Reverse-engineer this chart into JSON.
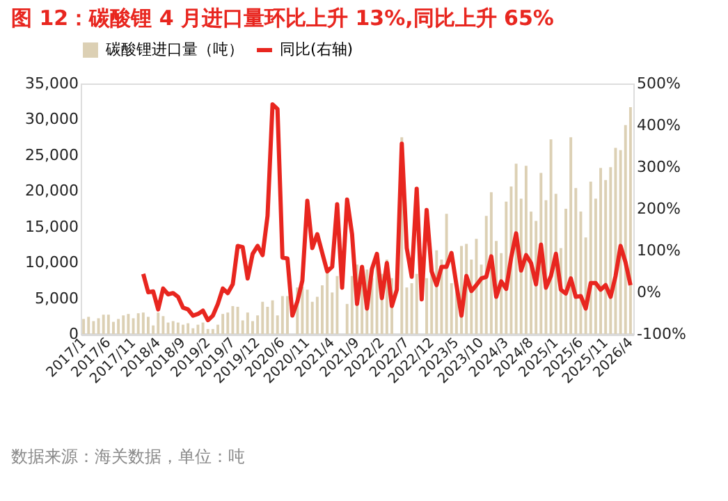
{
  "chart_data": {
    "type": "bar",
    "title": "图 12：碳酸锂 4 月进口量环比上升 13%,同比上升 65%",
    "categories": [
      "2017/1",
      null,
      null,
      null,
      null,
      "2017/6",
      null,
      null,
      null,
      null,
      "2017/11",
      null,
      null,
      null,
      null,
      "2018/4",
      null,
      null,
      null,
      null,
      "2018/9",
      null,
      null,
      null,
      null,
      "2019/2",
      null,
      null,
      null,
      null,
      "2019/7",
      null,
      null,
      null,
      null,
      "2019/12",
      null,
      null,
      null,
      null,
      "2020/6",
      null,
      null,
      null,
      null,
      "2020/11",
      null,
      null,
      null,
      null,
      "2021/4",
      null,
      null,
      null,
      null,
      "2021/9",
      null,
      null,
      null,
      null,
      "2022/2",
      null,
      null,
      null,
      null,
      "2022/7",
      null,
      null,
      null,
      null,
      "2022/12",
      null,
      null,
      null,
      null,
      "2023/5",
      null,
      null,
      null,
      null,
      "2023/10",
      null,
      null,
      null,
      null,
      "2024/3",
      null,
      null,
      null,
      null,
      "2024/8",
      null,
      null,
      null,
      null,
      "2025/1",
      null,
      null,
      null,
      null,
      "2025/6",
      null,
      null,
      null,
      null,
      "2025/11",
      null,
      null,
      null,
      null,
      "2026/4"
    ],
    "series": [
      {
        "name": "碳酸锂进口量（吨）",
        "color": "#dcd0b4",
        "values": [
          2100,
          2400,
          1800,
          2200,
          2700,
          2700,
          1700,
          2100,
          2600,
          2800,
          2200,
          2900,
          3000,
          2400,
          1200,
          3000,
          2500,
          1600,
          1800,
          1600,
          1300,
          1500,
          800,
          1300,
          1600,
          700,
          700,
          1300,
          2800,
          3000,
          3900,
          3800,
          1900,
          3000,
          1800,
          2600,
          4500,
          3800,
          4700,
          2600,
          5300,
          5300,
          null,
          6500,
          6600,
          6200,
          4500,
          5200,
          6800,
          8600,
          5800,
          8100,
          null,
          4200,
          8100,
          9700,
          7100,
          9000,
          7800,
          9700,
          8400,
          10400,
          7800,
          null,
          27500,
          6500,
          7100,
          8400,
          null,
          7800,
          8400,
          11700,
          10400,
          16800,
          7100,
          6500,
          12300,
          12600,
          10400,
          13300,
          9700,
          16500,
          19800,
          13000,
          11300,
          18500,
          20600,
          23800,
          18900,
          23500,
          17100,
          15800,
          22500,
          18700,
          27200,
          19600,
          12000,
          17500,
          27500,
          20400,
          17100,
          13500,
          21300,
          18900,
          23200,
          21500,
          23300,
          26000,
          25700,
          29200,
          31700
        ]
      },
      {
        "name": "同比(右轴)",
        "type": "line",
        "axis": "y2",
        "color": "#e8261f",
        "values": [
          null,
          null,
          null,
          null,
          null,
          null,
          null,
          null,
          null,
          null,
          null,
          null,
          44,
          0,
          2,
          -41,
          9,
          -5,
          -2,
          -11,
          -37,
          -41,
          -56,
          -52,
          -44,
          -67,
          -56,
          -28,
          9,
          -2,
          19,
          111,
          108,
          33,
          92,
          111,
          89,
          183,
          450,
          439,
          83,
          81,
          -56,
          -22,
          28,
          219,
          106,
          139,
          94,
          50,
          61,
          211,
          11,
          222,
          139,
          -28,
          61,
          -39,
          56,
          92,
          -14,
          70,
          -33,
          6,
          356,
          106,
          37,
          248,
          -17,
          197,
          50,
          17,
          61,
          61,
          94,
          17,
          -56,
          39,
          3,
          17,
          33,
          37,
          86,
          -11,
          26,
          8,
          83,
          141,
          52,
          89,
          70,
          19,
          114,
          11,
          39,
          92,
          6,
          -3,
          33,
          -11,
          -9,
          -39,
          22,
          22,
          6,
          17,
          -11,
          39,
          111,
          72,
          17
        ]
      }
    ],
    "ylim": [
      0,
      35000
    ],
    "yticks": [
      {
        "value": 0,
        "label": "0"
      },
      {
        "value": 5000,
        "label": "5,000"
      },
      {
        "value": 10000,
        "label": "10,000"
      },
      {
        "value": 15000,
        "label": "15,000"
      },
      {
        "value": 20000,
        "label": "20,000"
      },
      {
        "value": 25000,
        "label": "25,000"
      },
      {
        "value": 30000,
        "label": "30,000"
      },
      {
        "value": 35000,
        "label": "35,000"
      }
    ],
    "y2lim": [
      -100,
      500
    ],
    "y2ticks": [
      {
        "value": -100,
        "label": "-100%"
      },
      {
        "value": 0,
        "label": "0%"
      },
      {
        "value": 100,
        "label": "100%"
      },
      {
        "value": 200,
        "label": "200%"
      },
      {
        "value": 300,
        "label": "300%"
      },
      {
        "value": 400,
        "label": "400%"
      },
      {
        "value": 500,
        "label": "500%"
      }
    ],
    "legend": "top",
    "grid": false,
    "line_style": "solid",
    "marker": "none",
    "annotations": [
      "数据来源：海关数据，单位：吨"
    ]
  }
}
